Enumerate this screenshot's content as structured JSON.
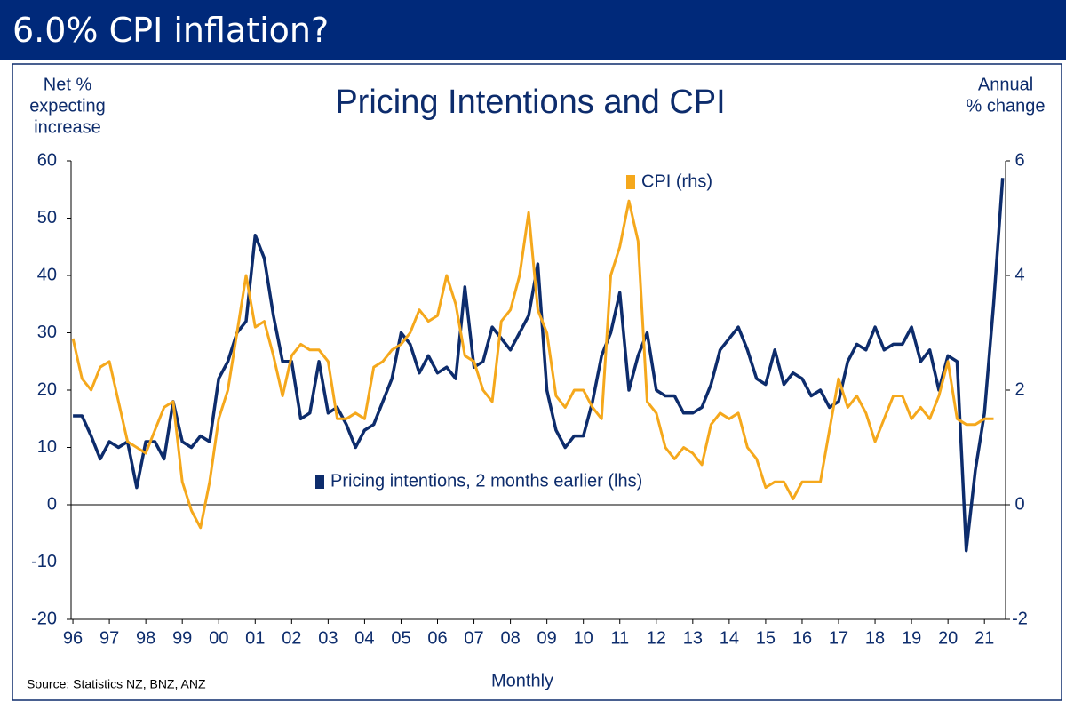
{
  "header": {
    "title": "6.0% CPI inflation?"
  },
  "source": "Source:  Statistics NZ, BNZ, ANZ",
  "chart_data": {
    "type": "line",
    "title": "Pricing Intentions and CPI",
    "ylabel": [
      "Net %",
      "expecting",
      "increase"
    ],
    "y2label": [
      "Annual",
      "% change"
    ],
    "xlabel": "Monthly",
    "x": [
      1996,
      1996.25,
      1996.5,
      1996.75,
      1997,
      1997.25,
      1997.5,
      1997.75,
      1998,
      1998.25,
      1998.5,
      1998.75,
      1999,
      1999.25,
      1999.5,
      1999.75,
      2000,
      2000.25,
      2000.5,
      2000.75,
      2001,
      2001.25,
      2001.5,
      2001.75,
      2002,
      2002.25,
      2002.5,
      2002.75,
      2003,
      2003.25,
      2003.5,
      2003.75,
      2004,
      2004.25,
      2004.5,
      2004.75,
      2005,
      2005.25,
      2005.5,
      2005.75,
      2006,
      2006.25,
      2006.5,
      2006.75,
      2007,
      2007.25,
      2007.5,
      2007.75,
      2008,
      2008.25,
      2008.5,
      2008.75,
      2009,
      2009.25,
      2009.5,
      2009.75,
      2010,
      2010.25,
      2010.5,
      2010.75,
      2011,
      2011.25,
      2011.5,
      2011.75,
      2012,
      2012.25,
      2012.5,
      2012.75,
      2013,
      2013.25,
      2013.5,
      2013.75,
      2014,
      2014.25,
      2014.5,
      2014.75,
      2015,
      2015.25,
      2015.5,
      2015.75,
      2016,
      2016.25,
      2016.5,
      2016.75,
      2017,
      2017.25,
      2017.5,
      2017.75,
      2018,
      2018.25,
      2018.5,
      2018.75,
      2019,
      2019.25,
      2019.5,
      2019.75,
      2020,
      2020.25,
      2020.5,
      2020.75,
      2021,
      2021.25,
      2021.5
    ],
    "series": [
      {
        "name": "Pricing intentions, 2 months earlier (lhs)",
        "color": "#0d2c6c",
        "axis": "y",
        "values": [
          15.5,
          15.5,
          12,
          8,
          11,
          10,
          11,
          3,
          11,
          11,
          8,
          18,
          11,
          10,
          12,
          11,
          22,
          25,
          30,
          32,
          47,
          43,
          33,
          25,
          25,
          15,
          16,
          25,
          16,
          17,
          14,
          10,
          13,
          14,
          18,
          22,
          30,
          28,
          23,
          26,
          23,
          24,
          22,
          38,
          24,
          25,
          31,
          29,
          27,
          30,
          33,
          42,
          20,
          13,
          10,
          12,
          12,
          18,
          26,
          30,
          37,
          20,
          26,
          30,
          20,
          19,
          19,
          16,
          16,
          17,
          21,
          27,
          29,
          31,
          27,
          22,
          21,
          27,
          21,
          23,
          22,
          19,
          20,
          17,
          18,
          25,
          28,
          27,
          31,
          27,
          28,
          28,
          31,
          25,
          27,
          20,
          26,
          25,
          -8,
          6,
          16,
          35,
          57
        ]
      },
      {
        "name": "CPI (rhs)",
        "color": "#f5a81c",
        "axis": "y2",
        "values": [
          2.9,
          2.2,
          2.0,
          2.4,
          2.5,
          1.8,
          1.1,
          1.0,
          0.9,
          1.3,
          1.7,
          1.8,
          0.4,
          -0.1,
          -0.4,
          0.4,
          1.5,
          2.0,
          3.0,
          4.0,
          3.1,
          3.2,
          2.6,
          1.9,
          2.6,
          2.8,
          2.7,
          2.7,
          2.5,
          1.5,
          1.5,
          1.6,
          1.5,
          2.4,
          2.5,
          2.7,
          2.8,
          3.0,
          3.4,
          3.2,
          3.3,
          4.0,
          3.5,
          2.6,
          2.5,
          2.0,
          1.8,
          3.2,
          3.4,
          4.0,
          5.1,
          3.4,
          3.0,
          1.9,
          1.7,
          2.0,
          2.0,
          1.7,
          1.5,
          4.0,
          4.5,
          5.3,
          4.6,
          1.8,
          1.6,
          1.0,
          0.8,
          1.0,
          0.9,
          0.7,
          1.4,
          1.6,
          1.5,
          1.6,
          1.0,
          0.8,
          0.3,
          0.4,
          0.4,
          0.1,
          0.4,
          0.4,
          0.4,
          1.3,
          2.2,
          1.7,
          1.9,
          1.6,
          1.1,
          1.5,
          1.9,
          1.9,
          1.5,
          1.7,
          1.5,
          1.9,
          2.5,
          1.5,
          1.4,
          1.4,
          1.5,
          1.5,
          null
        ]
      }
    ],
    "xlim": [
      1995.95,
      2021.58
    ],
    "xticks": [
      {
        "value": 1996,
        "label": "96"
      },
      {
        "value": 1997,
        "label": "97"
      },
      {
        "value": 1998,
        "label": "98"
      },
      {
        "value": 1999,
        "label": "99"
      },
      {
        "value": 2000,
        "label": "00"
      },
      {
        "value": 2001,
        "label": "01"
      },
      {
        "value": 2002,
        "label": "02"
      },
      {
        "value": 2003,
        "label": "03"
      },
      {
        "value": 2004,
        "label": "04"
      },
      {
        "value": 2005,
        "label": "05"
      },
      {
        "value": 2006,
        "label": "06"
      },
      {
        "value": 2007,
        "label": "07"
      },
      {
        "value": 2008,
        "label": "08"
      },
      {
        "value": 2009,
        "label": "09"
      },
      {
        "value": 2010,
        "label": "10"
      },
      {
        "value": 2011,
        "label": "11"
      },
      {
        "value": 2012,
        "label": "12"
      },
      {
        "value": 2013,
        "label": "13"
      },
      {
        "value": 2014,
        "label": "14"
      },
      {
        "value": 2015,
        "label": "15"
      },
      {
        "value": 2016,
        "label": "16"
      },
      {
        "value": 2017,
        "label": "17"
      },
      {
        "value": 2018,
        "label": "18"
      },
      {
        "value": 2019,
        "label": "19"
      },
      {
        "value": 2020,
        "label": "20"
      },
      {
        "value": 2021,
        "label": "21"
      }
    ],
    "ylim": [
      -20,
      60
    ],
    "yticks": [
      -20,
      -10,
      0,
      10,
      20,
      30,
      40,
      50,
      60
    ],
    "y2lim": [
      -2,
      6
    ],
    "y2ticks": [
      -2,
      0,
      2,
      4,
      6
    ],
    "zero_line": true
  }
}
